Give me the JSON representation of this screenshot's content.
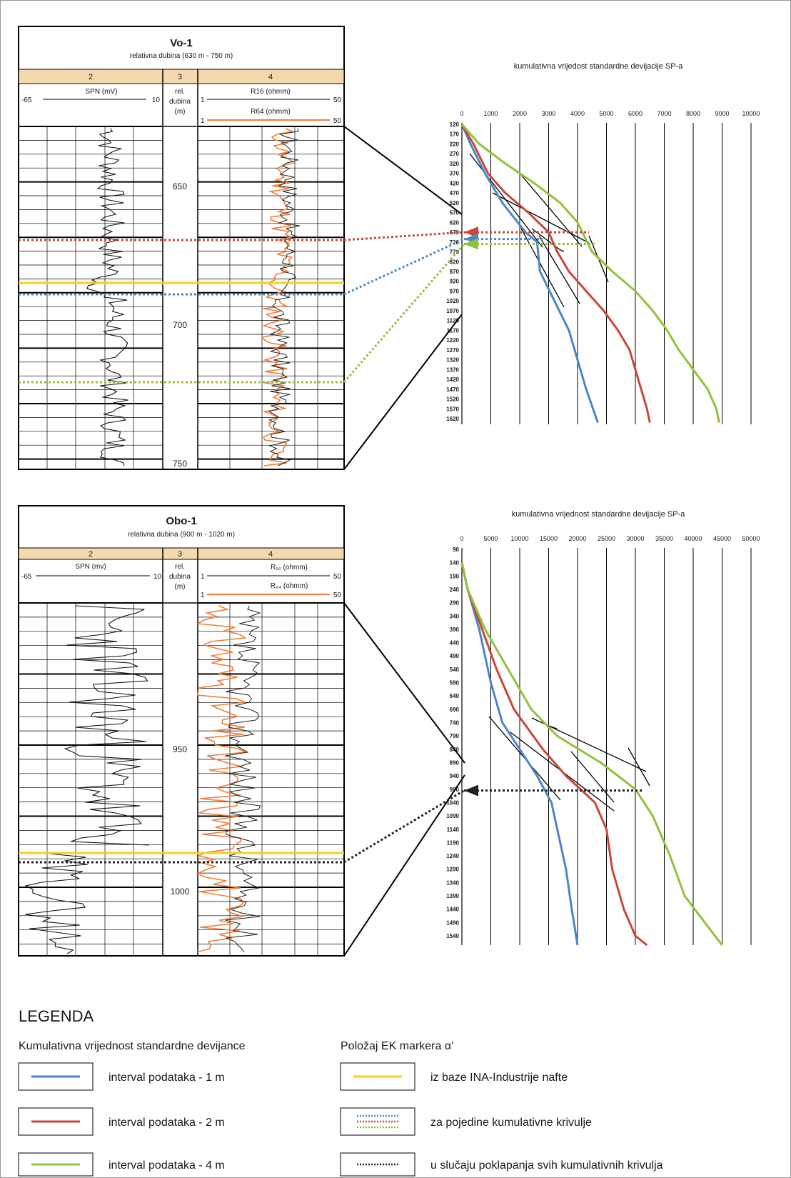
{
  "colors": {
    "blue": "#4a86c8",
    "red": "#c9473b",
    "green": "#93c13e",
    "yellow": "#f2d21b",
    "orange": "#f07d3a",
    "black_dotted": "#222222",
    "header_fill": "#f3d9ad"
  },
  "logs": [
    {
      "well": "Vo-1",
      "range": "relativna dubina (630 m - 750 m)",
      "col_numbers": [
        "2",
        "3",
        "4"
      ],
      "sp_label": "SPN (mV)",
      "sp_min": "-65",
      "sp_max": "10",
      "depth_header": [
        "rel.",
        "dubina",
        "(m)"
      ],
      "r1_label": "R16 (ohmm)",
      "r2_label": "R64 (ohmm)",
      "r_min": "1",
      "r_max": "50",
      "depth_labels": [
        "650",
        "700",
        "750"
      ]
    },
    {
      "well": "Obo-1",
      "range": "relativna dubina (900 m - 1020 m)",
      "col_numbers": [
        "2",
        "3",
        "4"
      ],
      "sp_label": "SPN (mv)",
      "sp_min": "-65",
      "sp_max": "10",
      "depth_header": [
        "rel.",
        "dubina",
        "(m)"
      ],
      "r1_label": "R₁₆ (ohmm)",
      "r2_label": "R₆₄ (ohmm)",
      "r_min": "1",
      "r_max": "50",
      "depth_labels": [
        "950",
        "1000"
      ]
    }
  ],
  "chart_data": [
    {
      "type": "line",
      "title": "kumulativna vrijedost standardne devijacije SP-a",
      "x_ticks": [
        "0",
        "1000",
        "2000",
        "3000",
        "4000",
        "5000",
        "6000",
        "7000",
        "8000",
        "9000",
        "10000"
      ],
      "y_ticks": [
        "120",
        "170",
        "220",
        "270",
        "320",
        "370",
        "420",
        "470",
        "520",
        "570",
        "620",
        "670",
        "720",
        "770",
        "820",
        "870",
        "920",
        "970",
        "1020",
        "1070",
        "1120",
        "1170",
        "1220",
        "1270",
        "1320",
        "1370",
        "1420",
        "1470",
        "1520",
        "1570",
        "1620"
      ],
      "xlim": [
        0,
        10000
      ],
      "ylim": [
        120,
        1620
      ],
      "x_axis_position": "top",
      "y_axis_inverted": true,
      "grid": "vertical",
      "series": [
        {
          "color": "blue",
          "points": [
            [
              0,
              120
            ],
            [
              300,
              220
            ],
            [
              800,
              370
            ],
            [
              1400,
              520
            ],
            [
              2200,
              670
            ],
            [
              2600,
              720
            ],
            [
              2700,
              870
            ],
            [
              3200,
              1020
            ],
            [
              3700,
              1170
            ],
            [
              4000,
              1320
            ],
            [
              4300,
              1470
            ],
            [
              4700,
              1640
            ]
          ]
        },
        {
          "color": "red",
          "points": [
            [
              0,
              120
            ],
            [
              400,
              220
            ],
            [
              900,
              370
            ],
            [
              1500,
              470
            ],
            [
              2300,
              570
            ],
            [
              3000,
              670
            ],
            [
              3300,
              770
            ],
            [
              3700,
              870
            ],
            [
              4300,
              970
            ],
            [
              4900,
              1070
            ],
            [
              5400,
              1170
            ],
            [
              5800,
              1270
            ],
            [
              6000,
              1370
            ],
            [
              6200,
              1470
            ],
            [
              6400,
              1570
            ],
            [
              6500,
              1640
            ]
          ]
        },
        {
          "color": "green",
          "points": [
            [
              0,
              120
            ],
            [
              600,
              220
            ],
            [
              1500,
              320
            ],
            [
              2500,
              420
            ],
            [
              3400,
              520
            ],
            [
              4000,
              620
            ],
            [
              4500,
              770
            ],
            [
              5200,
              870
            ],
            [
              6000,
              970
            ],
            [
              6600,
              1070
            ],
            [
              7100,
              1170
            ],
            [
              7500,
              1270
            ],
            [
              8000,
              1370
            ],
            [
              8500,
              1470
            ],
            [
              8800,
              1570
            ],
            [
              8900,
              1640
            ]
          ]
        }
      ],
      "marker_depths": [
        {
          "color": "red",
          "y": 670
        },
        {
          "color": "blue",
          "y": 705
        },
        {
          "color": "green",
          "y": 730
        }
      ]
    },
    {
      "type": "line",
      "title": "kumulativna vrijednost standardne devijacije SP-a",
      "x_ticks": [
        "0",
        "5000",
        "10000",
        "15000",
        "20000",
        "25000",
        "30000",
        "35000",
        "40000",
        "45000",
        "50000"
      ],
      "y_ticks": [
        "90",
        "140",
        "190",
        "240",
        "290",
        "340",
        "390",
        "440",
        "490",
        "540",
        "590",
        "640",
        "690",
        "740",
        "790",
        "840",
        "890",
        "940",
        "990",
        "1040",
        "1090",
        "1140",
        "1190",
        "1240",
        "1290",
        "1340",
        "1390",
        "1440",
        "1490",
        "1540"
      ],
      "xlim": [
        0,
        50000
      ],
      "ylim": [
        90,
        1540
      ],
      "x_axis_position": "top",
      "y_axis_inverted": true,
      "grid": "vertical",
      "series": [
        {
          "color": "blue",
          "points": [
            [
              0,
              140
            ],
            [
              1000,
              240
            ],
            [
              3000,
              390
            ],
            [
              5000,
              590
            ],
            [
              7000,
              740
            ],
            [
              10000,
              840
            ],
            [
              13000,
              940
            ],
            [
              15500,
              1040
            ],
            [
              16500,
              1140
            ],
            [
              18000,
              1290
            ],
            [
              19000,
              1440
            ],
            [
              20000,
              1590
            ]
          ]
        },
        {
          "color": "red",
          "points": [
            [
              0,
              140
            ],
            [
              1000,
              240
            ],
            [
              3500,
              390
            ],
            [
              6000,
              540
            ],
            [
              9000,
              690
            ],
            [
              14000,
              840
            ],
            [
              18000,
              940
            ],
            [
              23000,
              1040
            ],
            [
              25000,
              1140
            ],
            [
              26000,
              1290
            ],
            [
              28000,
              1440
            ],
            [
              30000,
              1540
            ],
            [
              32000,
              1590
            ]
          ]
        },
        {
          "color": "green",
          "points": [
            [
              0,
              140
            ],
            [
              1000,
              240
            ],
            [
              4000,
              390
            ],
            [
              8000,
              540
            ],
            [
              12000,
              690
            ],
            [
              16500,
              790
            ],
            [
              24000,
              890
            ],
            [
              30000,
              990
            ],
            [
              33000,
              1090
            ],
            [
              36000,
              1240
            ],
            [
              38500,
              1390
            ],
            [
              42000,
              1490
            ],
            [
              45000,
              1590
            ]
          ]
        }
      ],
      "marker_depths": [
        {
          "color": "black_dotted",
          "y": 995
        }
      ]
    }
  ],
  "legend": {
    "title": "LEGENDA",
    "left_heading": "Kumulativna vrijednost standardne devijance",
    "right_heading": "Položaj EK markera α'",
    "left_items": [
      {
        "color": "blue",
        "label": "interval podataka - 1 m"
      },
      {
        "color": "red",
        "label": "interval podataka - 2 m"
      },
      {
        "color": "green",
        "label": "interval podataka - 4 m"
      }
    ],
    "right_items": [
      {
        "style": "yellow",
        "label": "iz baze INA-Industrije nafte"
      },
      {
        "style": "dotted-multi",
        "label": "za pojedine kumulativne krivulje"
      },
      {
        "style": "dotted-black",
        "label": "u slučaju poklapanja svih kumulativnih krivulja"
      }
    ]
  }
}
